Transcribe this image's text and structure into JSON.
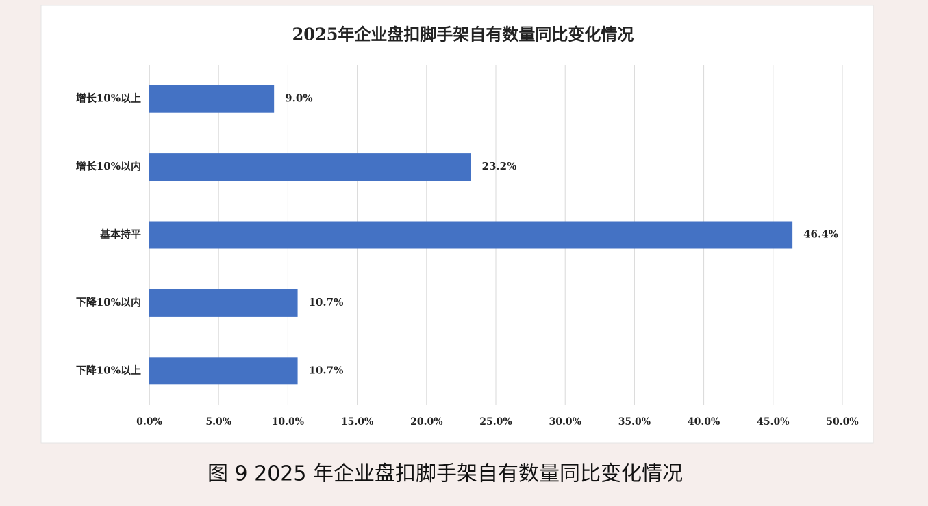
{
  "chart_data": {
    "type": "bar",
    "orientation": "horizontal",
    "title": "2025年企业盘扣脚手架自有数量同比变化情况",
    "categories": [
      "增长10%以上",
      "增长10%以内",
      "基本持平",
      "下降10%以内",
      "下降10%以上"
    ],
    "values": [
      9.0,
      23.2,
      46.4,
      10.7,
      10.7
    ],
    "value_labels": [
      "9.0%",
      "23.2%",
      "46.4%",
      "10.7%",
      "10.7%"
    ],
    "color": "#4472c4",
    "xlim": [
      0,
      50
    ],
    "xticks": [
      {
        "value": 0,
        "label": "0.0%"
      },
      {
        "value": 5,
        "label": "5.0%"
      },
      {
        "value": 10,
        "label": "10.0%"
      },
      {
        "value": 15,
        "label": "15.0%"
      },
      {
        "value": 20,
        "label": "20.0%"
      },
      {
        "value": 25,
        "label": "25.0%"
      },
      {
        "value": 30,
        "label": "30.0%"
      },
      {
        "value": 35,
        "label": "35.0%"
      },
      {
        "value": 40,
        "label": "40.0%"
      },
      {
        "value": 45,
        "label": "45.0%"
      },
      {
        "value": 50,
        "label": "50.0%"
      }
    ],
    "grid": true
  },
  "caption": "图 9 2025 年企业盘扣脚手架自有数量同比变化情况"
}
